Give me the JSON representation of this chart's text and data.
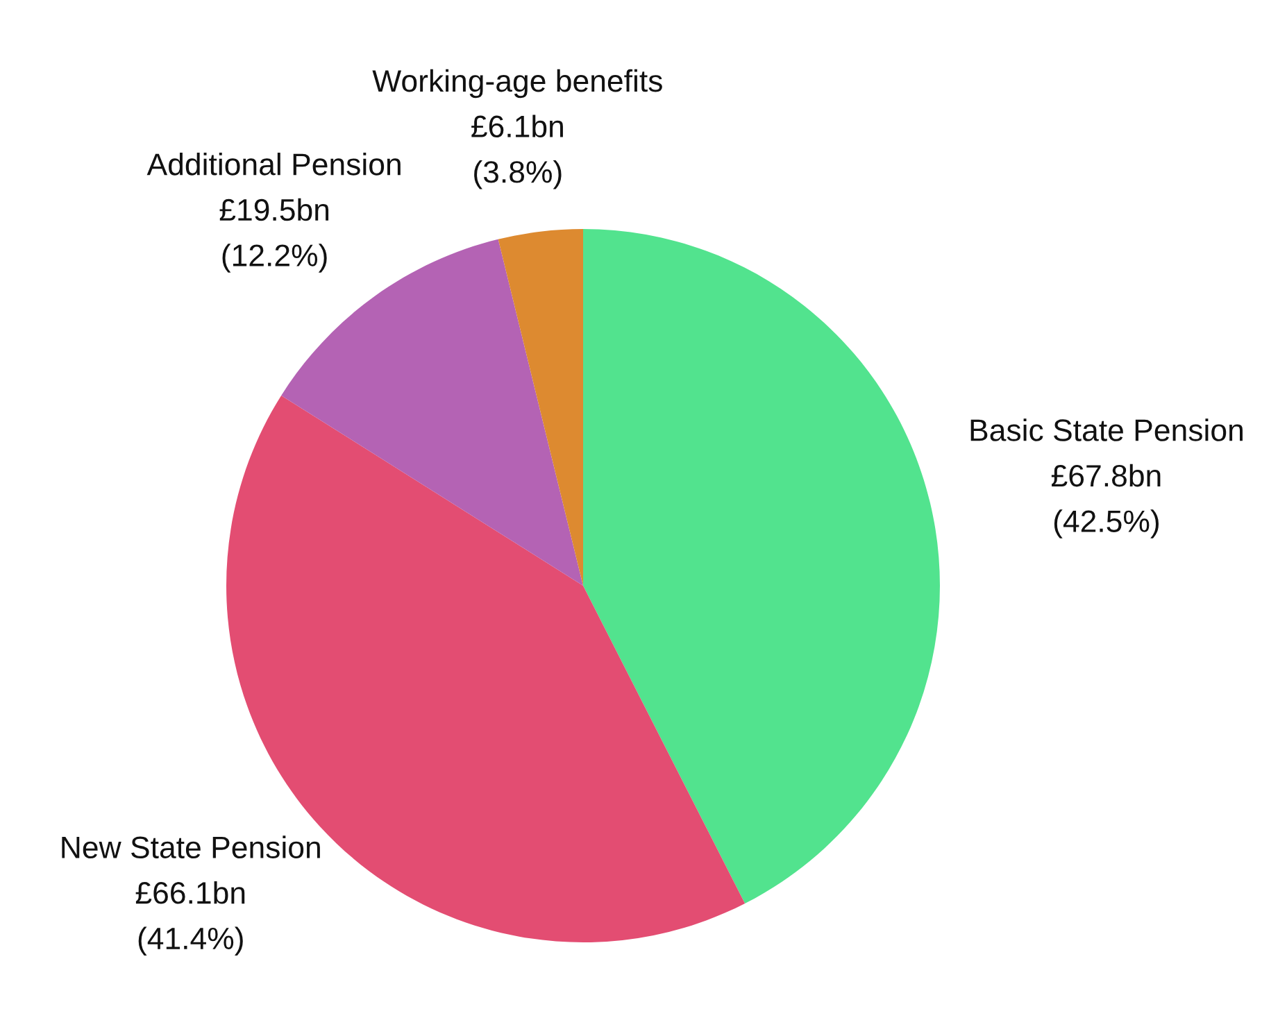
{
  "chart_data": {
    "type": "pie",
    "categories": [
      "Basic State Pension",
      "New State Pension",
      "Additional Pension",
      "Working-age benefits"
    ],
    "values": [
      67.8,
      66.1,
      19.5,
      6.1
    ],
    "value_labels": [
      "£67.8bn",
      "£66.1bn",
      "£19.5bn",
      "£6.1bn"
    ],
    "annotations": [
      "(42.5%)",
      "(41.4%)",
      "(12.2%)",
      "(3.8%)"
    ],
    "colors": [
      "#52e38e",
      "#e34d72",
      "#b463b4",
      "#dd8a30"
    ]
  }
}
